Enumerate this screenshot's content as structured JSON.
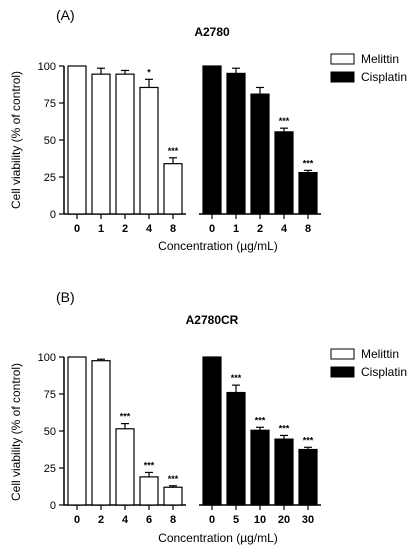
{
  "chart_data": [
    {
      "type": "bar",
      "panel_label": "(A)",
      "title": "A2780",
      "ylabel": "Cell viability (% of control)",
      "xlabel": "Concentration (µg/mL)",
      "ylim": [
        0,
        100
      ],
      "yticks": [
        0,
        25,
        50,
        75,
        100
      ],
      "legend_position": "right",
      "series": [
        {
          "name": "Melittin",
          "color": "#ffffff",
          "categories": [
            "0",
            "1",
            "2",
            "4",
            "8"
          ],
          "values": [
            100,
            94.5,
            94.5,
            85.5,
            34
          ],
          "errors": [
            0,
            4,
            2.5,
            5.5,
            4
          ],
          "significance": [
            "",
            "",
            "",
            "*",
            "***"
          ]
        },
        {
          "name": "Cisplatin",
          "color": "#000000",
          "categories": [
            "0",
            "1",
            "2",
            "4",
            "8"
          ],
          "values": [
            100,
            95,
            81,
            55.5,
            28
          ],
          "errors": [
            0,
            3.5,
            4.5,
            2.5,
            1.5
          ],
          "significance": [
            "",
            "",
            "",
            "***",
            "***"
          ]
        }
      ]
    },
    {
      "type": "bar",
      "panel_label": "(B)",
      "title": "A2780CR",
      "ylabel": "Cell viability (% of control)",
      "xlabel": "Concentration (µg/mL)",
      "ylim": [
        0,
        100
      ],
      "yticks": [
        0,
        25,
        50,
        75,
        100
      ],
      "legend_position": "right",
      "series": [
        {
          "name": "Melittin",
          "color": "#ffffff",
          "categories": [
            "0",
            "2",
            "4",
            "6",
            "8"
          ],
          "values": [
            100,
            97.5,
            51.5,
            19,
            12
          ],
          "errors": [
            0,
            1,
            3.5,
            3,
            1
          ],
          "significance": [
            "",
            "",
            "***",
            "***",
            "***"
          ]
        },
        {
          "name": "Cisplatin",
          "color": "#000000",
          "categories": [
            "0",
            "5",
            "10",
            "20",
            "30"
          ],
          "values": [
            100,
            76,
            50.5,
            44.5,
            37.5
          ],
          "errors": [
            0,
            5,
            2,
            2.5,
            1.5
          ],
          "significance": [
            "",
            "***",
            "***",
            "***",
            "***"
          ]
        }
      ]
    }
  ]
}
